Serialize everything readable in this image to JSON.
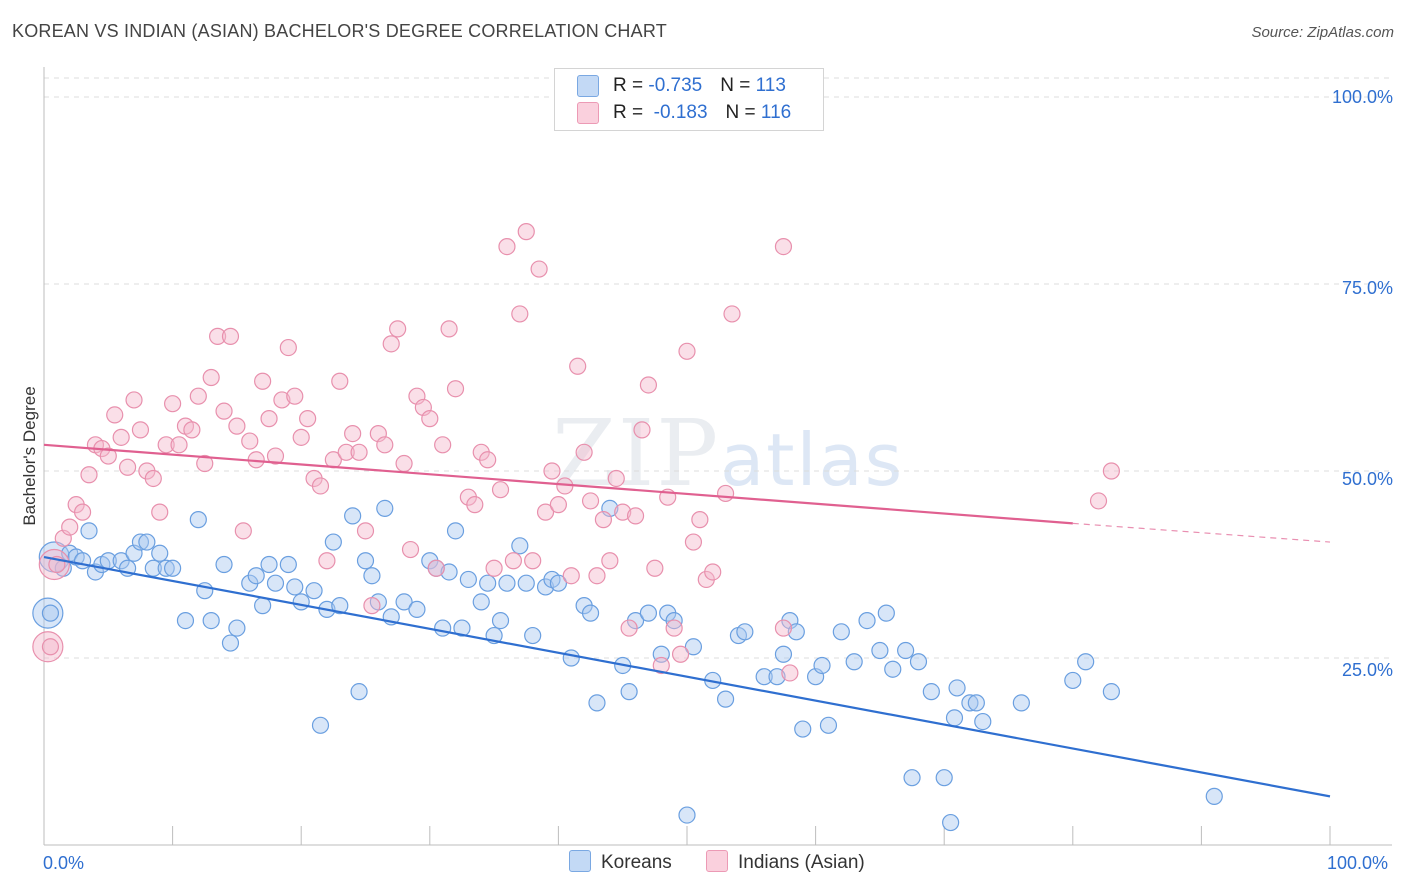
{
  "title": "KOREAN VS INDIAN (ASIAN) BACHELOR'S DEGREE CORRELATION CHART",
  "source": "Source: ZipAtlas.com",
  "watermark": {
    "zip": "ZIP",
    "atlas": "atlas"
  },
  "legend": {
    "rows": [
      {
        "r_label": "R = ",
        "r_value": "-0.735",
        "n_label": "N = ",
        "n_value": "113",
        "color": "#a8c8f0"
      },
      {
        "r_label": "R = ",
        "r_value": " -0.183",
        "n_label": "N = ",
        "n_value": "116",
        "color": "#f5b8cb"
      }
    ]
  },
  "bottom_legend": [
    {
      "label": "Koreans",
      "color": "#a8c8f0"
    },
    {
      "label": "Indians (Asian)",
      "color": "#f5b8cb"
    }
  ],
  "chart_data": {
    "type": "scatter",
    "title": "KOREAN VS INDIAN (ASIAN) BACHELOR'S DEGREE CORRELATION CHART",
    "xlabel": "",
    "ylabel": "Bachelor's Degree",
    "xlim": [
      0,
      100
    ],
    "ylim": [
      0,
      100
    ],
    "x_tick_labels": [
      "0.0%",
      "100.0%"
    ],
    "y_ticks": [
      25,
      50,
      75,
      100
    ],
    "y_tick_labels": [
      "25.0%",
      "50.0%",
      "75.0%",
      "100.0%"
    ],
    "grid": true,
    "legend_position": "top-center",
    "series": [
      {
        "name": "Koreans",
        "color": "#6a9fe0",
        "fill": "#a8c8f0",
        "trend_color": "#2f6fd0",
        "trend": {
          "x0": 0,
          "y0": 38.5,
          "x1": 100,
          "y1": 6.5
        },
        "points": [
          [
            0.5,
            31
          ],
          [
            1.5,
            37
          ],
          [
            2,
            39
          ],
          [
            2.5,
            38.5
          ],
          [
            3,
            38
          ],
          [
            3.5,
            42
          ],
          [
            4,
            36.5
          ],
          [
            4.5,
            37.5
          ],
          [
            5,
            38
          ],
          [
            6,
            38
          ],
          [
            6.5,
            37
          ],
          [
            7,
            39
          ],
          [
            7.5,
            40.5
          ],
          [
            8,
            40.5
          ],
          [
            8.5,
            37
          ],
          [
            9,
            39
          ],
          [
            9.5,
            37
          ],
          [
            10,
            37
          ],
          [
            11,
            30
          ],
          [
            12,
            43.5
          ],
          [
            12.5,
            34
          ],
          [
            13,
            30
          ],
          [
            14,
            37.5
          ],
          [
            14.5,
            27
          ],
          [
            15,
            29
          ],
          [
            16,
            35
          ],
          [
            16.5,
            36
          ],
          [
            17,
            32
          ],
          [
            17.5,
            37.5
          ],
          [
            18,
            35
          ],
          [
            19,
            37.5
          ],
          [
            19.5,
            34.5
          ],
          [
            20,
            32.5
          ],
          [
            21,
            34
          ],
          [
            21.5,
            16
          ],
          [
            22,
            31.5
          ],
          [
            22.5,
            40.5
          ],
          [
            23,
            32
          ],
          [
            24,
            44
          ],
          [
            24.5,
            20.5
          ],
          [
            25,
            38
          ],
          [
            25.5,
            36
          ],
          [
            26,
            32.5
          ],
          [
            26.5,
            45
          ],
          [
            27,
            30.5
          ],
          [
            28,
            32.5
          ],
          [
            29,
            31.5
          ],
          [
            30,
            38
          ],
          [
            30.5,
            37
          ],
          [
            31,
            29
          ],
          [
            31.5,
            36.5
          ],
          [
            32,
            42
          ],
          [
            32.5,
            29
          ],
          [
            33,
            35.5
          ],
          [
            34,
            32.5
          ],
          [
            34.5,
            35
          ],
          [
            35,
            28
          ],
          [
            35.5,
            30
          ],
          [
            36,
            35
          ],
          [
            37,
            40
          ],
          [
            37.5,
            35
          ],
          [
            38,
            28
          ],
          [
            39,
            34.5
          ],
          [
            39.5,
            35.5
          ],
          [
            40,
            35
          ],
          [
            41,
            25
          ],
          [
            42,
            32
          ],
          [
            42.5,
            31
          ],
          [
            43,
            19
          ],
          [
            44,
            45
          ],
          [
            45,
            24
          ],
          [
            45.5,
            20.5
          ],
          [
            46,
            30
          ],
          [
            47,
            31
          ],
          [
            48,
            25.5
          ],
          [
            48.5,
            31
          ],
          [
            49,
            30
          ],
          [
            50,
            4
          ],
          [
            50.5,
            26.5
          ],
          [
            52,
            22
          ],
          [
            53,
            19.5
          ],
          [
            54,
            28
          ],
          [
            54.5,
            28.5
          ],
          [
            56,
            22.5
          ],
          [
            57,
            22.5
          ],
          [
            57.5,
            25.5
          ],
          [
            58,
            30
          ],
          [
            58.5,
            28.5
          ],
          [
            59,
            15.5
          ],
          [
            60,
            22.5
          ],
          [
            60.5,
            24
          ],
          [
            61,
            16
          ],
          [
            62,
            28.5
          ],
          [
            63,
            24.5
          ],
          [
            64,
            30
          ],
          [
            65,
            26
          ],
          [
            65.5,
            31
          ],
          [
            66,
            23.5
          ],
          [
            67,
            26
          ],
          [
            67.5,
            9
          ],
          [
            68,
            24.5
          ],
          [
            69,
            20.5
          ],
          [
            70,
            9
          ],
          [
            70.5,
            3
          ],
          [
            70.8,
            17
          ],
          [
            71,
            21
          ],
          [
            72,
            19
          ],
          [
            72.5,
            19
          ],
          [
            73,
            16.5
          ],
          [
            76,
            19
          ],
          [
            80,
            22
          ],
          [
            81,
            24.5
          ],
          [
            83,
            20.5
          ],
          [
            91,
            6.5
          ]
        ],
        "large_points": [
          [
            0.3,
            31
          ],
          [
            0.8,
            38.5
          ]
        ]
      },
      {
        "name": "Indians (Asian)",
        "color": "#e890ad",
        "fill": "#f5b8cb",
        "trend_color": "#e06090",
        "trend": {
          "x0": 0,
          "y0": 53.5,
          "x1": 80,
          "y1": 43,
          "dash_to_x": 100,
          "dash_to_y": 40.5
        },
        "points": [
          [
            0.5,
            26.5
          ],
          [
            1,
            37.5
          ],
          [
            1.5,
            41
          ],
          [
            2,
            42.5
          ],
          [
            2.5,
            45.5
          ],
          [
            3,
            44.5
          ],
          [
            3.5,
            49.5
          ],
          [
            4,
            53.5
          ],
          [
            4.5,
            53
          ],
          [
            5,
            52
          ],
          [
            5.5,
            57.5
          ],
          [
            6,
            54.5
          ],
          [
            6.5,
            50.5
          ],
          [
            7,
            59.5
          ],
          [
            7.5,
            55.5
          ],
          [
            8,
            50
          ],
          [
            8.5,
            49
          ],
          [
            9,
            44.5
          ],
          [
            9.5,
            53.5
          ],
          [
            10,
            59
          ],
          [
            10.5,
            53.5
          ],
          [
            11,
            56
          ],
          [
            11.5,
            55.5
          ],
          [
            12,
            60
          ],
          [
            12.5,
            51
          ],
          [
            13,
            62.5
          ],
          [
            13.5,
            68
          ],
          [
            14,
            58
          ],
          [
            14.5,
            68
          ],
          [
            15,
            56
          ],
          [
            15.5,
            42
          ],
          [
            16,
            54
          ],
          [
            16.5,
            51.5
          ],
          [
            17,
            62
          ],
          [
            17.5,
            57
          ],
          [
            18,
            52
          ],
          [
            18.5,
            59.5
          ],
          [
            19,
            66.5
          ],
          [
            19.5,
            60
          ],
          [
            20,
            54.5
          ],
          [
            20.5,
            57
          ],
          [
            21,
            49
          ],
          [
            21.5,
            48
          ],
          [
            22,
            38
          ],
          [
            22.5,
            51.5
          ],
          [
            23,
            62
          ],
          [
            23.5,
            52.5
          ],
          [
            24,
            55
          ],
          [
            24.5,
            52.5
          ],
          [
            25,
            42
          ],
          [
            25.5,
            32
          ],
          [
            26,
            55
          ],
          [
            26.5,
            53.5
          ],
          [
            27,
            67
          ],
          [
            27.5,
            69
          ],
          [
            28,
            51
          ],
          [
            28.5,
            39.5
          ],
          [
            29,
            60
          ],
          [
            29.5,
            58.5
          ],
          [
            30,
            57
          ],
          [
            30.5,
            37
          ],
          [
            31,
            53.5
          ],
          [
            31.5,
            69
          ],
          [
            32,
            61
          ],
          [
            33,
            46.5
          ],
          [
            33.5,
            45.5
          ],
          [
            34,
            52.5
          ],
          [
            34.5,
            51.5
          ],
          [
            35,
            37
          ],
          [
            35.5,
            47.5
          ],
          [
            36,
            80
          ],
          [
            36.5,
            38
          ],
          [
            37,
            71
          ],
          [
            37.5,
            82
          ],
          [
            38,
            38
          ],
          [
            38.5,
            77
          ],
          [
            39,
            44.5
          ],
          [
            39.5,
            50
          ],
          [
            40,
            45.5
          ],
          [
            40.5,
            48
          ],
          [
            41,
            36
          ],
          [
            41.5,
            64
          ],
          [
            42,
            52.5
          ],
          [
            42.5,
            46
          ],
          [
            43,
            36
          ],
          [
            43.5,
            43.5
          ],
          [
            44,
            38
          ],
          [
            44.5,
            49
          ],
          [
            45,
            44.5
          ],
          [
            45.5,
            29
          ],
          [
            46,
            44
          ],
          [
            46.5,
            55.5
          ],
          [
            47,
            61.5
          ],
          [
            47.5,
            37
          ],
          [
            48,
            24
          ],
          [
            48.5,
            46.5
          ],
          [
            49,
            29
          ],
          [
            49.5,
            25.5
          ],
          [
            50,
            66
          ],
          [
            50.5,
            40.5
          ],
          [
            51,
            43.5
          ],
          [
            51.5,
            35.5
          ],
          [
            52,
            36.5
          ],
          [
            53,
            47
          ],
          [
            53.5,
            71
          ],
          [
            57.5,
            80
          ],
          [
            57.5,
            29
          ],
          [
            58,
            23
          ],
          [
            82,
            46
          ],
          [
            83,
            50
          ]
        ],
        "large_points": [
          [
            0.3,
            26.5
          ],
          [
            0.8,
            37.5
          ]
        ]
      }
    ]
  }
}
